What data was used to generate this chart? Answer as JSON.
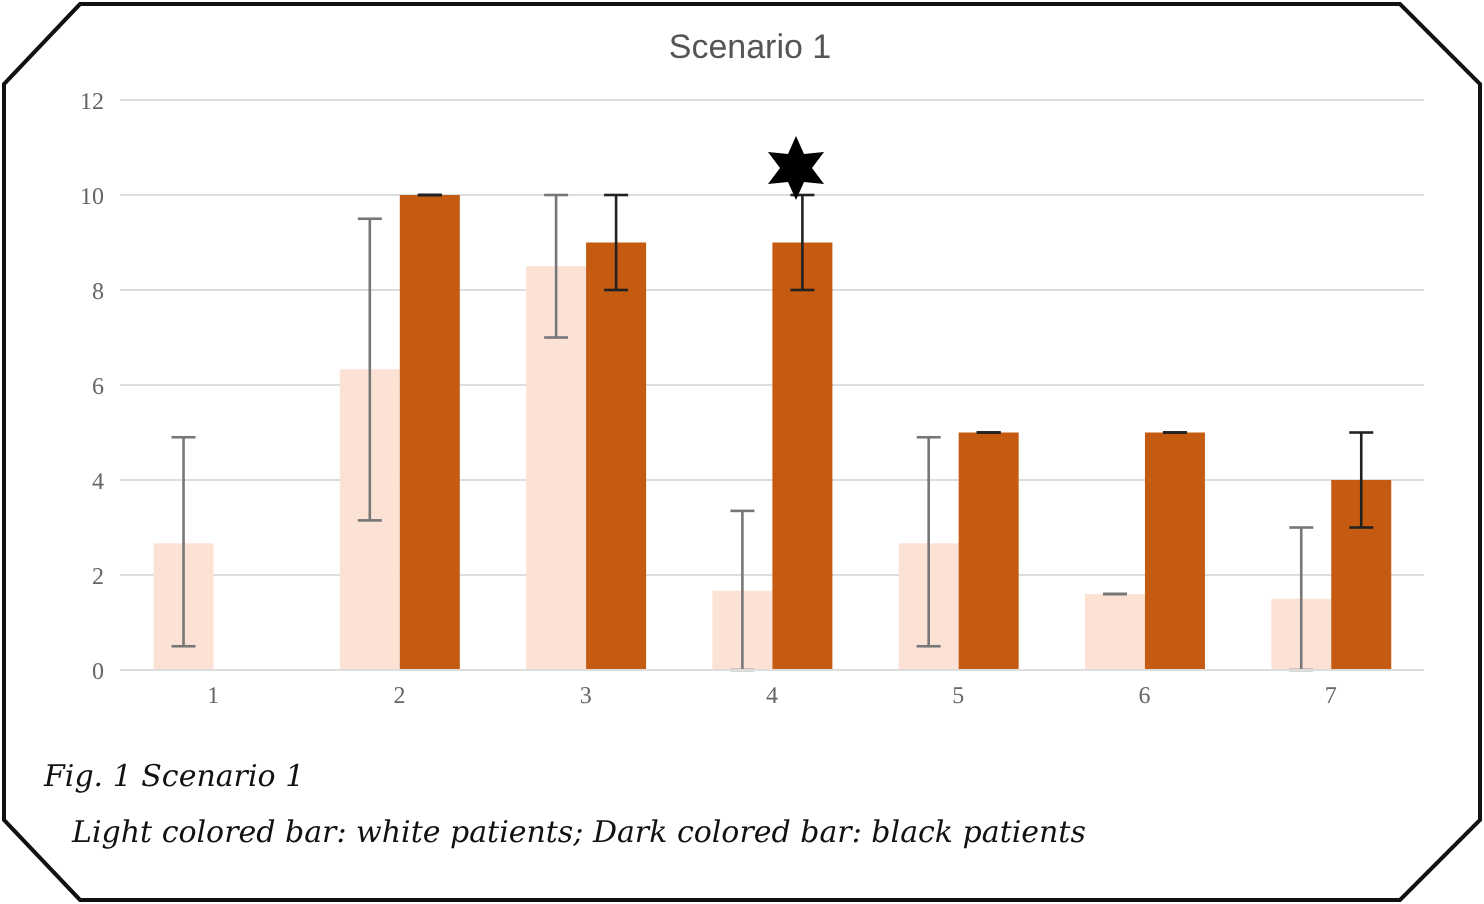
{
  "chart_data": {
    "type": "bar",
    "title": "Scenario 1",
    "categories": [
      "1",
      "2",
      "3",
      "4",
      "5",
      "6",
      "7"
    ],
    "series": [
      {
        "color": "#fbe2d5",
        "values": [
          2.67,
          6.33,
          8.5,
          1.67,
          2.67,
          1.6,
          1.5
        ],
        "errors": [
          [
            0.5,
            4.9
          ],
          [
            3.15,
            9.5
          ],
          [
            7,
            10
          ],
          [
            0,
            3.35
          ],
          [
            0.5,
            4.9
          ],
          [
            1.6,
            1.6
          ],
          [
            0,
            3
          ]
        ]
      },
      {
        "color": "#c55a11",
        "values": [
          0,
          10,
          9,
          9,
          5,
          5,
          4
        ],
        "errors": [
          [
            0,
            0
          ],
          [
            10,
            10
          ],
          [
            8,
            10
          ],
          [
            8,
            10
          ],
          [
            5,
            5
          ],
          [
            5,
            5
          ],
          [
            3,
            5
          ]
        ]
      }
    ],
    "ylim": [
      0,
      12
    ],
    "yticks": [
      0,
      2,
      4,
      6,
      8,
      10,
      12
    ],
    "grid": "y",
    "legend": false,
    "annotations": [
      "Fig. 1 Scenario 1",
      "Light colored bar: white patients;  Dark colored bar: black patients"
    ]
  }
}
